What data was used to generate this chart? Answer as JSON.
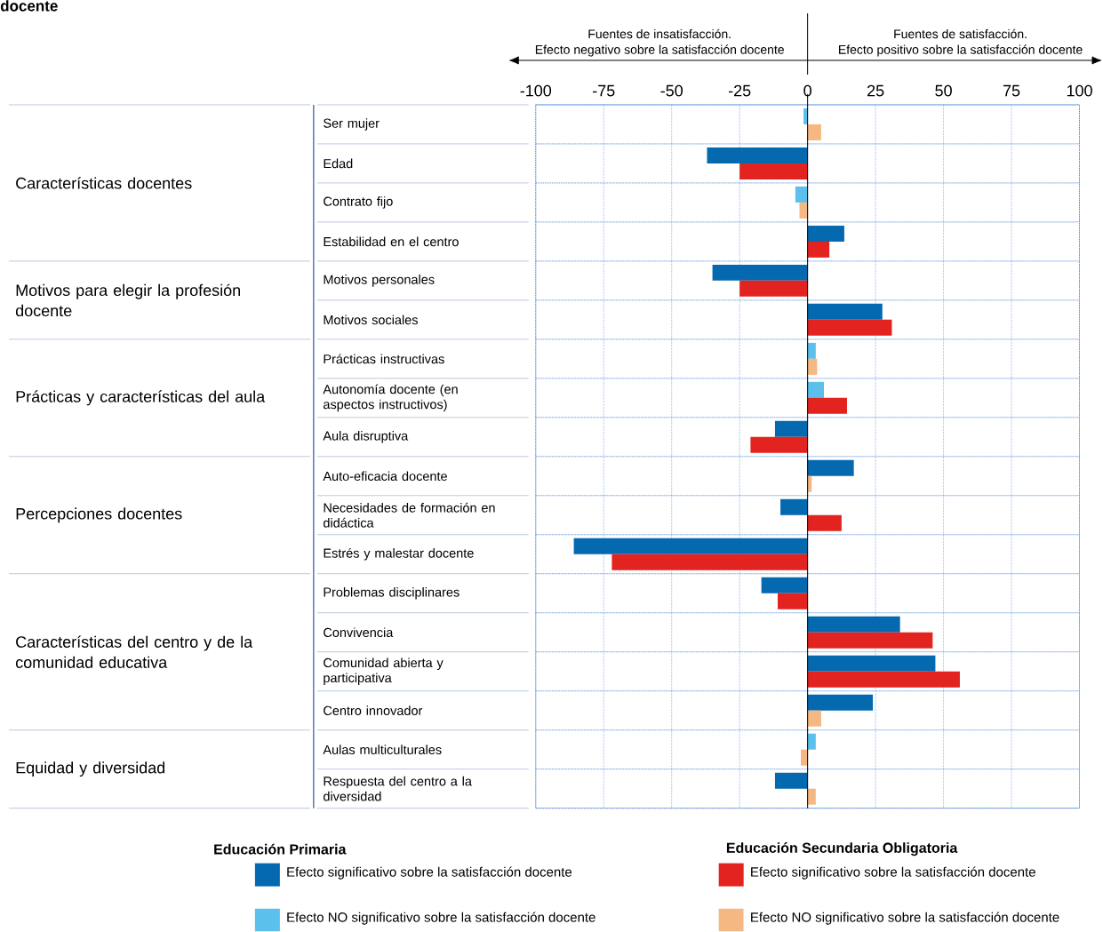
{
  "chart_data": {
    "type": "bar",
    "orientation": "horizontal",
    "title": "docente",
    "categories": [
      "Ser mujer",
      "Edad",
      "Contrato fijo",
      "Estabilidad en el centro",
      "Motivos personales",
      "Motivos sociales",
      "Prácticas instructivas",
      "Autonomía docente (en aspectos instructivos)",
      "Aula disruptiva",
      "Auto-eficacia docente",
      "Necesidades de formación en didáctica",
      "Estrés y malestar docente",
      "Problemas disciplinares",
      "Convivencia",
      "Comunidad abierta y participativa",
      "Centro innovador",
      "Aulas multiculturales",
      "Respuesta del centro a la diversidad"
    ],
    "series": [
      {
        "name": "Efecto significativo sobre la satisfacción docente",
        "color": "#0569b0",
        "values": [
          null,
          -37,
          null,
          13.5,
          -35,
          27.5,
          null,
          null,
          -12,
          17,
          -10,
          -86,
          -17,
          34,
          47,
          24,
          null,
          -12
        ]
      },
      {
        "name": "Efecto NO significativo sobre la satisfacción docente",
        "color": "#5bc0eb",
        "values": [
          -1.5,
          null,
          -4.5,
          null,
          null,
          null,
          3,
          6,
          null,
          null,
          null,
          null,
          null,
          null,
          null,
          null,
          3,
          null
        ]
      },
      {
        "name": "Efecto significativo sobre la satisfacción docente",
        "color": "#e32320",
        "values": [
          null,
          -25,
          null,
          8,
          -25,
          31,
          null,
          14.5,
          -21,
          null,
          12.5,
          -72,
          -11,
          46,
          56,
          null,
          null,
          null
        ]
      },
      {
        "name": "Efecto NO significativo sobre la satisfacción docente",
        "color": "#f6b882",
        "values": [
          5,
          null,
          -3,
          null,
          null,
          null,
          3.5,
          null,
          null,
          1.5,
          null,
          null,
          null,
          null,
          null,
          5,
          -2.5,
          3
        ]
      }
    ],
    "xlim": [
      -100,
      100
    ],
    "xticks": [
      -100,
      -75,
      -50,
      -25,
      0,
      25,
      50,
      75,
      100
    ],
    "grid": true,
    "legend": "bottom",
    "annotations": [
      "Fuentes de insatisfacción.",
      "Efecto negativo sobre la satisfacción docente",
      "Fuentes de satisfacción.",
      "Efecto positivo sobre la satisfacción docente",
      "Educación Primaria",
      "Educación Secundaria Obligatoria",
      "Características docentes",
      "Motivos para elegir la profesión docente",
      "Prácticas y características del aula",
      "Percepciones docentes",
      "Características del centro y de la comunidad educativa",
      "Equidad y diversidad"
    ]
  }
}
